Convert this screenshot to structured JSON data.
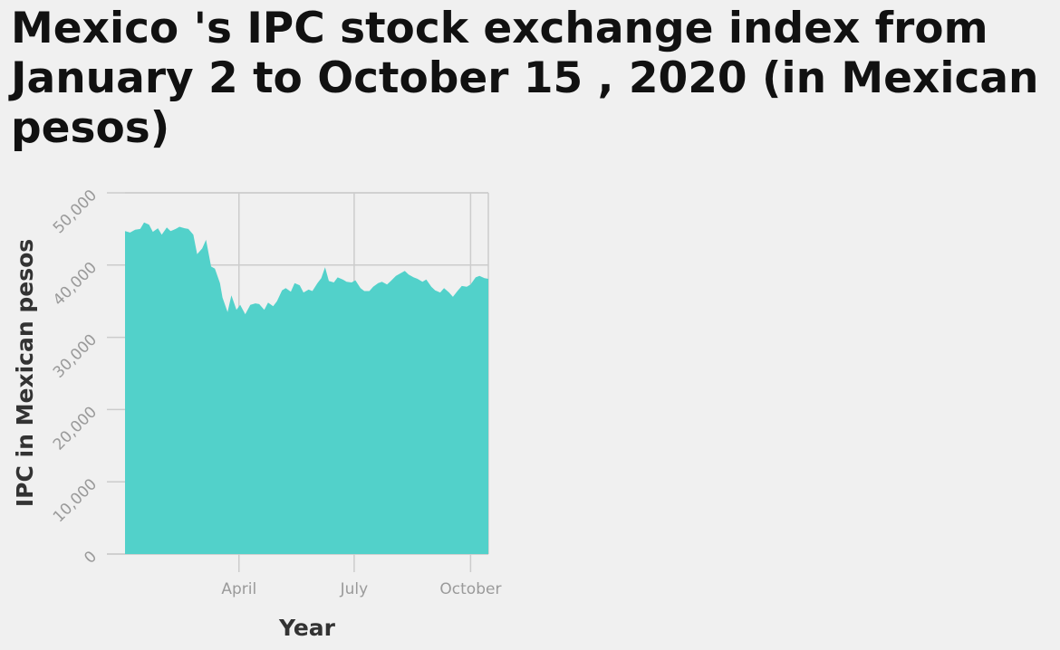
{
  "chart_data": {
    "type": "area",
    "title": "Mexico 's IPC stock exchange index from January 2 to October 15 , 2020 (in Mexican pesos)",
    "xlabel": "Year",
    "ylabel": "IPC in Mexican pesos",
    "ylim": [
      0,
      50000
    ],
    "y_ticks": [
      0,
      10000,
      20000,
      30000,
      40000,
      50000
    ],
    "y_tick_labels": [
      "0",
      "10,000",
      "20,000",
      "30,000",
      "40,000",
      "50,000"
    ],
    "x_tick_labels": [
      "April",
      "July",
      "October"
    ],
    "x_ticks": [
      "2020-04-01",
      "2020-07-01",
      "2020-10-01"
    ],
    "xlim": [
      "2020-01-02",
      "2020-10-15"
    ],
    "grid": true,
    "fill_color": "#52d1ca",
    "points": [
      [
        "2020-01-02",
        44700
      ],
      [
        "2020-01-06",
        44500
      ],
      [
        "2020-01-10",
        44900
      ],
      [
        "2020-01-14",
        45000
      ],
      [
        "2020-01-17",
        45900
      ],
      [
        "2020-01-21",
        45600
      ],
      [
        "2020-01-24",
        44600
      ],
      [
        "2020-01-28",
        45100
      ],
      [
        "2020-01-31",
        44200
      ],
      [
        "2020-02-04",
        45200
      ],
      [
        "2020-02-07",
        44700
      ],
      [
        "2020-02-11",
        45000
      ],
      [
        "2020-02-14",
        45300
      ],
      [
        "2020-02-18",
        45100
      ],
      [
        "2020-02-21",
        45000
      ],
      [
        "2020-02-25",
        44200
      ],
      [
        "2020-02-28",
        41500
      ],
      [
        "2020-03-03",
        42300
      ],
      [
        "2020-03-06",
        43500
      ],
      [
        "2020-03-10",
        39800
      ],
      [
        "2020-03-13",
        39500
      ],
      [
        "2020-03-17",
        37500
      ],
      [
        "2020-03-19",
        35500
      ],
      [
        "2020-03-23",
        33500
      ],
      [
        "2020-03-26",
        35800
      ],
      [
        "2020-03-30",
        33800
      ],
      [
        "2020-04-02",
        34500
      ],
      [
        "2020-04-06",
        33200
      ],
      [
        "2020-04-10",
        34500
      ],
      [
        "2020-04-14",
        34700
      ],
      [
        "2020-04-17",
        34600
      ],
      [
        "2020-04-21",
        33800
      ],
      [
        "2020-04-24",
        34800
      ],
      [
        "2020-04-28",
        34300
      ],
      [
        "2020-05-01",
        35000
      ],
      [
        "2020-05-05",
        36500
      ],
      [
        "2020-05-08",
        36800
      ],
      [
        "2020-05-12",
        36300
      ],
      [
        "2020-05-15",
        37500
      ],
      [
        "2020-05-19",
        37200
      ],
      [
        "2020-05-22",
        36200
      ],
      [
        "2020-05-26",
        36600
      ],
      [
        "2020-05-29",
        36400
      ],
      [
        "2020-06-02",
        37500
      ],
      [
        "2020-06-05",
        38200
      ],
      [
        "2020-06-08",
        39700
      ],
      [
        "2020-06-11",
        37800
      ],
      [
        "2020-06-15",
        37600
      ],
      [
        "2020-06-18",
        38300
      ],
      [
        "2020-06-22",
        38000
      ],
      [
        "2020-06-25",
        37700
      ],
      [
        "2020-06-29",
        37600
      ],
      [
        "2020-07-02",
        37900
      ],
      [
        "2020-07-06",
        36800
      ],
      [
        "2020-07-09",
        36400
      ],
      [
        "2020-07-13",
        36400
      ],
      [
        "2020-07-16",
        37000
      ],
      [
        "2020-07-20",
        37500
      ],
      [
        "2020-07-23",
        37700
      ],
      [
        "2020-07-27",
        37300
      ],
      [
        "2020-07-30",
        37800
      ],
      [
        "2020-08-03",
        38500
      ],
      [
        "2020-08-06",
        38800
      ],
      [
        "2020-08-10",
        39200
      ],
      [
        "2020-08-13",
        38700
      ],
      [
        "2020-08-17",
        38300
      ],
      [
        "2020-08-20",
        38100
      ],
      [
        "2020-08-24",
        37700
      ],
      [
        "2020-08-27",
        38000
      ],
      [
        "2020-08-31",
        37000
      ],
      [
        "2020-09-03",
        36500
      ],
      [
        "2020-09-07",
        36200
      ],
      [
        "2020-09-10",
        36800
      ],
      [
        "2020-09-14",
        36200
      ],
      [
        "2020-09-17",
        35600
      ],
      [
        "2020-09-21",
        36500
      ],
      [
        "2020-09-24",
        37100
      ],
      [
        "2020-09-28",
        37000
      ],
      [
        "2020-10-01",
        37300
      ],
      [
        "2020-10-05",
        38300
      ],
      [
        "2020-10-08",
        38500
      ],
      [
        "2020-10-12",
        38200
      ],
      [
        "2020-10-15",
        38100
      ]
    ]
  }
}
